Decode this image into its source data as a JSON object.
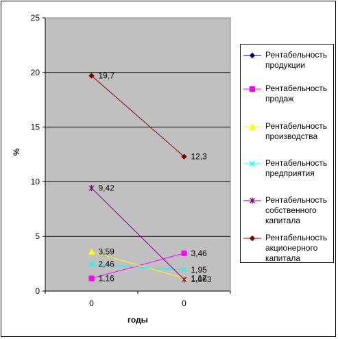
{
  "chart_data": {
    "type": "line",
    "categories": [
      "0",
      "0"
    ],
    "xlabel": "годы",
    "ylabel": "%",
    "ylim": [
      0,
      25
    ],
    "yticks": [
      0,
      5,
      10,
      15,
      20,
      25
    ],
    "grid": true,
    "legend_position": "right",
    "series": [
      {
        "name": "Рентабельность продукции",
        "name_lines": [
          "Рентабельность",
          "продукции"
        ],
        "values": [
          null,
          null
        ],
        "labels": [
          "",
          ""
        ],
        "color": "#000080",
        "marker": "diamond"
      },
      {
        "name": "Рентабельность продаж",
        "name_lines": [
          "Рентабельность",
          "продаж"
        ],
        "values": [
          1.16,
          3.46
        ],
        "labels": [
          "1,16",
          "3,46"
        ],
        "color": "#ff00ff",
        "marker": "square"
      },
      {
        "name": "Рентабельность производства",
        "name_lines": [
          "Рентабельность",
          "производства"
        ],
        "values": [
          3.59,
          1.17
        ],
        "labels": [
          "3,59",
          "1,17"
        ],
        "color": "#ffff00",
        "marker": "triangle"
      },
      {
        "name": "Рентабельность предприятия",
        "name_lines": [
          "Рентабельность",
          "предприятия"
        ],
        "values": [
          2.46,
          1.95
        ],
        "labels": [
          "2,46",
          "1,95"
        ],
        "color": "#00ffff",
        "marker": "x"
      },
      {
        "name": "Рентабельность собственного капитала",
        "name_lines": [
          "Рентабельность",
          "собственного",
          "капитала"
        ],
        "values": [
          9.42,
          1.063
        ],
        "labels": [
          "9,42",
          "1,063"
        ],
        "color": "#800080",
        "marker": "star"
      },
      {
        "name": "Рентабельность акционерного капитала",
        "name_lines": [
          "Рентабельность",
          "акционерного",
          "капитала"
        ],
        "values": [
          19.7,
          12.3
        ],
        "labels": [
          "19,7",
          "12,3"
        ],
        "color": "#800000",
        "marker": "diamond"
      }
    ]
  }
}
